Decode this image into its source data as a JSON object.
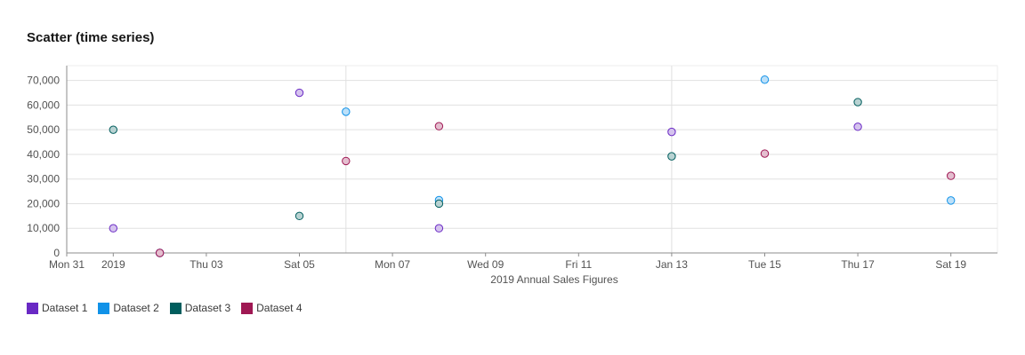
{
  "chart_data": {
    "type": "scatter",
    "title": "Scatter (time series)",
    "xlabel": "2019 Annual Sales Figures",
    "ylabel": "",
    "ylim": [
      0,
      76000
    ],
    "xlim": [
      "2018-12-31",
      "2019-01-20"
    ],
    "x_tick_labels": [
      {
        "date": "2018-12-31",
        "label": "Mon 31"
      },
      {
        "date": "2019-01-01",
        "label": "2019"
      },
      {
        "date": "2019-01-03",
        "label": "Thu 03"
      },
      {
        "date": "2019-01-05",
        "label": "Sat 05"
      },
      {
        "date": "2019-01-07",
        "label": "Mon 07"
      },
      {
        "date": "2019-01-09",
        "label": "Wed 09"
      },
      {
        "date": "2019-01-11",
        "label": "Fri 11"
      },
      {
        "date": "2019-01-13",
        "label": "Jan 13"
      },
      {
        "date": "2019-01-15",
        "label": "Tue 15"
      },
      {
        "date": "2019-01-17",
        "label": "Thu 17"
      },
      {
        "date": "2019-01-19",
        "label": "Sat 19"
      }
    ],
    "y_ticks": [
      0,
      10000,
      20000,
      30000,
      40000,
      50000,
      60000,
      70000
    ],
    "y_tick_labels": [
      "0",
      "10,000",
      "20,000",
      "30,000",
      "40,000",
      "50,000",
      "60,000",
      "70,000"
    ],
    "grid": true,
    "legend_position": "bottom-left",
    "series": [
      {
        "name": "Dataset 1",
        "color": "#6929c4",
        "points": [
          {
            "x": "2019-01-01",
            "y": 10000
          },
          {
            "x": "2019-01-02",
            "y": 0
          },
          {
            "x": "2019-01-05",
            "y": 65000
          },
          {
            "x": "2019-01-08",
            "y": 10000
          },
          {
            "x": "2019-01-13",
            "y": 49123
          },
          {
            "x": "2019-01-17",
            "y": 51213
          }
        ]
      },
      {
        "name": "Dataset 2",
        "color": "#1192e8",
        "points": [
          {
            "x": "2019-01-02",
            "y": 0
          },
          {
            "x": "2019-01-06",
            "y": 57312
          },
          {
            "x": "2019-01-08",
            "y": 21432
          },
          {
            "x": "2019-01-15",
            "y": 70323
          },
          {
            "x": "2019-01-19",
            "y": 21300
          }
        ]
      },
      {
        "name": "Dataset 3",
        "color": "#005d5d",
        "points": [
          {
            "x": "2019-01-01",
            "y": 50000
          },
          {
            "x": "2019-01-05",
            "y": 15000
          },
          {
            "x": "2019-01-08",
            "y": 20000
          },
          {
            "x": "2019-01-13",
            "y": 39213
          },
          {
            "x": "2019-01-17",
            "y": 61213
          }
        ]
      },
      {
        "name": "Dataset 4",
        "color": "#9f1853",
        "points": [
          {
            "x": "2019-01-02",
            "y": 0
          },
          {
            "x": "2019-01-06",
            "y": 37312
          },
          {
            "x": "2019-01-08",
            "y": 51432
          },
          {
            "x": "2019-01-15",
            "y": 40323
          },
          {
            "x": "2019-01-19",
            "y": 31300
          }
        ]
      }
    ]
  }
}
